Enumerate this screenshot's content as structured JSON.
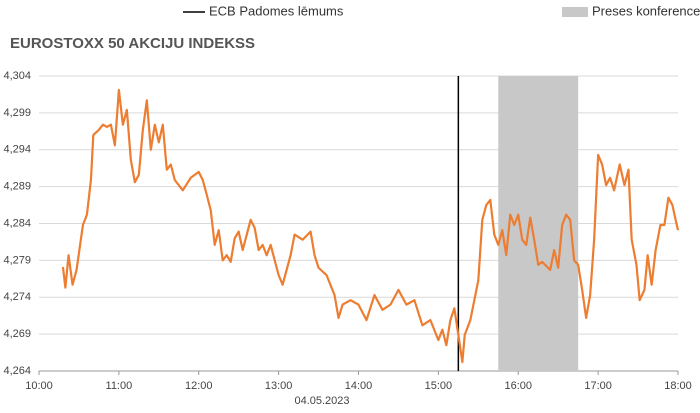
{
  "chart_data": {
    "type": "line",
    "title": "EUROSTOXX 50 AKCIJU INDEKSS",
    "xlabel": "04.05.2023",
    "x": [
      10.3,
      10.33,
      10.37,
      10.42,
      10.47,
      10.55,
      10.6,
      10.65,
      10.68,
      10.75,
      10.8,
      10.85,
      10.9,
      10.95,
      11.0,
      11.05,
      11.1,
      11.15,
      11.2,
      11.25,
      11.3,
      11.35,
      11.4,
      11.45,
      11.5,
      11.55,
      11.6,
      11.65,
      11.7,
      11.8,
      11.9,
      12.0,
      12.05,
      12.1,
      12.15,
      12.2,
      12.25,
      12.3,
      12.35,
      12.4,
      12.45,
      12.5,
      12.55,
      12.65,
      12.7,
      12.75,
      12.8,
      12.85,
      12.9,
      13.0,
      13.05,
      13.1,
      13.15,
      13.2,
      13.3,
      13.4,
      13.45,
      13.5,
      13.6,
      13.7,
      13.75,
      13.8,
      13.9,
      14.0,
      14.1,
      14.2,
      14.3,
      14.4,
      14.5,
      14.6,
      14.7,
      14.8,
      14.9,
      15.0,
      15.05,
      15.1,
      15.15,
      15.2,
      15.25,
      15.3,
      15.33,
      15.4,
      15.5,
      15.55,
      15.6,
      15.65,
      15.7,
      15.75,
      15.8,
      15.85,
      15.9,
      15.95,
      16.0,
      16.05,
      16.1,
      16.15,
      16.2,
      16.25,
      16.3,
      16.4,
      16.45,
      16.5,
      16.55,
      16.6,
      16.65,
      16.7,
      16.75,
      16.8,
      16.85,
      16.9,
      16.95,
      17.0,
      17.05,
      17.1,
      17.15,
      17.2,
      17.27,
      17.33,
      17.38,
      17.42,
      17.48,
      17.52,
      17.58,
      17.62,
      17.67,
      17.72,
      17.78,
      17.83,
      17.88,
      17.93,
      17.97,
      18.0
    ],
    "series": [
      {
        "color": "#ed7d31",
        "values": [
          4.2781,
          4.2753,
          4.2797,
          4.2757,
          4.2777,
          4.2838,
          4.2852,
          4.2899,
          4.296,
          4.2967,
          4.2974,
          4.2971,
          4.2974,
          4.2946,
          4.3021,
          4.2974,
          4.2994,
          4.2926,
          4.2896,
          4.2906,
          4.2967,
          4.3007,
          4.294,
          4.2974,
          4.295,
          4.2974,
          4.2913,
          4.292,
          4.2899,
          4.2885,
          4.2902,
          4.291,
          4.2899,
          4.2879,
          4.2858,
          4.2811,
          4.2831,
          4.279,
          4.2797,
          4.2788,
          4.282,
          4.2829,
          4.2804,
          4.2845,
          4.2834,
          4.2804,
          4.2811,
          4.2797,
          4.2811,
          4.277,
          4.2757,
          4.2777,
          4.2797,
          4.2825,
          4.2818,
          4.2829,
          4.2797,
          4.278,
          4.277,
          4.2743,
          4.2712,
          4.273,
          4.2736,
          4.273,
          4.2709,
          4.2743,
          4.2723,
          4.273,
          4.275,
          4.273,
          4.2736,
          4.2702,
          4.2709,
          4.2682,
          4.2696,
          4.2675,
          4.2709,
          4.2725,
          4.2689,
          4.2652,
          4.2689,
          4.2709,
          4.2763,
          4.2845,
          4.2865,
          4.2872,
          4.2825,
          4.2811,
          4.2831,
          4.2797,
          4.2852,
          4.2838,
          4.2852,
          4.2818,
          4.2811,
          4.2848,
          4.2818,
          4.2784,
          4.2788,
          4.2777,
          4.2804,
          4.278,
          4.2838,
          4.2852,
          4.2845,
          4.279,
          4.2784,
          4.275,
          4.2712,
          4.2743,
          4.2818,
          4.2933,
          4.292,
          4.2892,
          4.2902,
          4.2885,
          4.292,
          4.2892,
          4.2913,
          4.2818,
          4.2784,
          4.2736,
          4.275,
          4.2797,
          4.2757,
          4.2804,
          4.2838,
          4.2838,
          4.2875,
          4.2865,
          4.2845,
          4.2831
        ]
      }
    ],
    "xlim": [
      10,
      18
    ],
    "xticks": [
      {
        "value": 10,
        "label": "10:00"
      },
      {
        "value": 11,
        "label": "11:00"
      },
      {
        "value": 12,
        "label": "12:00"
      },
      {
        "value": 13,
        "label": "13:00"
      },
      {
        "value": 14,
        "label": "14:00"
      },
      {
        "value": 15,
        "label": "15:00"
      },
      {
        "value": 16,
        "label": "16:00"
      },
      {
        "value": 17,
        "label": "17:00"
      },
      {
        "value": 18,
        "label": "18:00"
      }
    ],
    "ylim": [
      4.264,
      4.304
    ],
    "yticks": [
      {
        "value": 4.264,
        "label": "4,264"
      },
      {
        "value": 4.269,
        "label": "4,269"
      },
      {
        "value": 4.274,
        "label": "4,274"
      },
      {
        "value": 4.279,
        "label": "4,279"
      },
      {
        "value": 4.284,
        "label": "4,284"
      },
      {
        "value": 4.289,
        "label": "4,289"
      },
      {
        "value": 4.294,
        "label": "4,294"
      },
      {
        "value": 4.299,
        "label": "4,299"
      },
      {
        "value": 4.304,
        "label": "4,304"
      }
    ],
    "grid": true,
    "annotations": {
      "vertical_line": {
        "label": "ECB Padomes lēmums",
        "x": 15.25,
        "color": "#000000"
      },
      "shaded_band": {
        "label": "Preses konference",
        "x": [
          15.75,
          16.75
        ],
        "color": "#c8c8c8"
      }
    }
  }
}
